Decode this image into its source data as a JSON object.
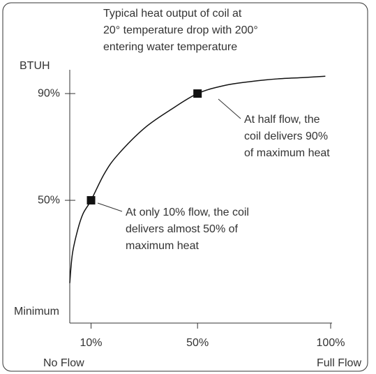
{
  "chart_data": {
    "type": "line",
    "title_lines": [
      "Typical heat output of coil at",
      "20° temperature drop with 200°",
      "entering water temperature"
    ],
    "ylabel": "BTUH",
    "ymin_label": "Minimum",
    "xlim": [
      2,
      100
    ],
    "ylim": [
      4,
      98
    ],
    "xticks": [
      {
        "value": 10,
        "label": "10%"
      },
      {
        "value": 50,
        "label": "50%"
      },
      {
        "value": 100,
        "label": "100%"
      }
    ],
    "yticks": [
      {
        "value": 50,
        "label": "50%"
      },
      {
        "value": 90,
        "label": "90%"
      }
    ],
    "xend_labels": [
      "No Flow",
      "Full Flow"
    ],
    "series": [
      {
        "color": "#111111",
        "x": [
          2,
          3,
          5,
          7,
          10,
          15,
          20,
          30,
          40,
          50,
          60,
          70,
          80,
          90,
          98
        ],
        "values": [
          19,
          30,
          39,
          45,
          50,
          60,
          67,
          77,
          84,
          90,
          93,
          94.5,
          95.5,
          96,
          96.5
        ]
      }
    ],
    "points": {
      "color": "#111111",
      "x": [
        10,
        50
      ],
      "values": [
        50,
        90
      ]
    },
    "annotations": [
      {
        "lines": [
          "At only 10% flow, the coil",
          "delivers almost 50% of",
          "maximum heat"
        ]
      },
      {
        "lines": [
          "At half flow, the",
          "coil delivers 90%",
          "of maximum heat"
        ]
      }
    ]
  }
}
